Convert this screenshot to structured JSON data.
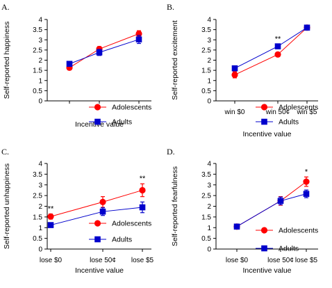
{
  "colors": {
    "adolescents": "#ff0000",
    "adults": "#0000cc",
    "axis": "#000000"
  },
  "chart_data": [
    {
      "type": "line",
      "panel": "A.",
      "xlabel": "Incentive value",
      "ylabel": "Self-reported happiness",
      "ylim": [
        0,
        4
      ],
      "yticks": [
        "0",
        "0.5",
        "1",
        "1.5",
        "2",
        "2.5",
        "3",
        "3.5",
        "4"
      ],
      "categories": [
        "",
        "",
        ""
      ],
      "legend": [
        "Adolescents",
        "Adults"
      ],
      "series": [
        {
          "name": "Adolescents",
          "values": [
            1.63,
            2.55,
            3.3
          ],
          "err": [
            0.08,
            0.12,
            0.15
          ]
        },
        {
          "name": "Adults",
          "values": [
            1.82,
            2.38,
            3.02
          ],
          "err": [
            0.08,
            0.15,
            0.2
          ]
        }
      ],
      "annotations": [
        "",
        "",
        ""
      ]
    },
    {
      "type": "line",
      "panel": "B.",
      "xlabel": "Incentive value",
      "ylabel": "Self-reported excitement",
      "ylim": [
        0,
        4
      ],
      "yticks": [
        "0",
        "0.5",
        "1",
        "1.5",
        "2",
        "2.5",
        "3",
        "3.5",
        "4"
      ],
      "categories": [
        "win $0",
        "win 50¢",
        "win $5"
      ],
      "legend": [
        "Adolescents",
        "Adults"
      ],
      "series": [
        {
          "name": "Adolescents",
          "values": [
            1.28,
            2.28,
            3.6
          ],
          "err": [
            0.15,
            0.1,
            0.08
          ]
        },
        {
          "name": "Adults",
          "values": [
            1.6,
            2.68,
            3.6
          ],
          "err": [
            0.12,
            0.1,
            0.06
          ]
        }
      ],
      "annotations": [
        "",
        "**",
        ""
      ]
    },
    {
      "type": "line",
      "panel": "C.",
      "xlabel": "Incentive value",
      "ylabel": "Self-reported unhappiness",
      "ylim": [
        0,
        4
      ],
      "yticks": [
        "0",
        "0.5",
        "1",
        "1.5",
        "2",
        "2.5",
        "3",
        "3.5",
        "4"
      ],
      "categories": [
        "lose $0",
        "lose 50¢",
        "lose $5"
      ],
      "legend": [
        "Adolescents",
        "Adults"
      ],
      "series": [
        {
          "name": "Adolescents",
          "values": [
            1.52,
            2.2,
            2.75
          ],
          "err": [
            0.12,
            0.25,
            0.3
          ]
        },
        {
          "name": "Adults",
          "values": [
            1.12,
            1.75,
            1.95
          ],
          "err": [
            0.06,
            0.18,
            0.25
          ]
        }
      ],
      "annotations": [
        "**",
        "",
        "**"
      ]
    },
    {
      "type": "line",
      "panel": "D.",
      "xlabel": "Incentive value",
      "ylabel": "Self-reported fearfulness",
      "ylim": [
        0,
        4
      ],
      "yticks": [
        "0",
        "0.5",
        "1",
        "1.5",
        "2",
        "2.5",
        "3",
        "3.5",
        "4"
      ],
      "categories": [
        "lose $0",
        "lose 50¢",
        "lose $5"
      ],
      "legend": [
        "Adolescents",
        "Adults"
      ],
      "series": [
        {
          "name": "Adolescents",
          "values": [
            1.05,
            2.25,
            3.15
          ],
          "err": [
            0.04,
            0.2,
            0.22
          ]
        },
        {
          "name": "Adults",
          "values": [
            1.05,
            2.25,
            2.58
          ],
          "err": [
            0.04,
            0.18,
            0.18
          ]
        }
      ],
      "annotations": [
        "",
        "",
        "*"
      ]
    }
  ]
}
